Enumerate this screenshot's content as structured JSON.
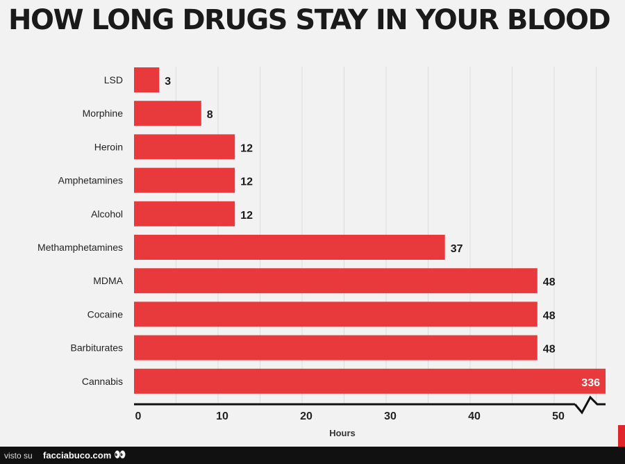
{
  "chart_data": {
    "type": "bar",
    "orientation": "horizontal",
    "title": "HOW LONG DRUGS STAY IN YOUR BLOOD",
    "xlabel": "Hours",
    "ylabel": "",
    "categories": [
      "LSD",
      "Morphine",
      "Heroin",
      "Amphetamines",
      "Alcohol",
      "Methamphetamines",
      "MDMA",
      "Cocaine",
      "Barbiturates",
      "Cannabis"
    ],
    "values": [
      3,
      8,
      12,
      12,
      12,
      37,
      48,
      48,
      48,
      336
    ],
    "data_labels": [
      "3",
      "8",
      "12",
      "12",
      "12",
      "37",
      "48",
      "48",
      "48",
      "336"
    ],
    "xticks": [
      "0",
      "10",
      "20",
      "30",
      "40",
      "50"
    ],
    "xlim": [
      0,
      56
    ],
    "axis_break": true,
    "grid": true,
    "bar_color": "#e8393c"
  },
  "footer": {
    "prefix": "visto su",
    "site": "facciabuco.com",
    "eyes": "👀"
  }
}
